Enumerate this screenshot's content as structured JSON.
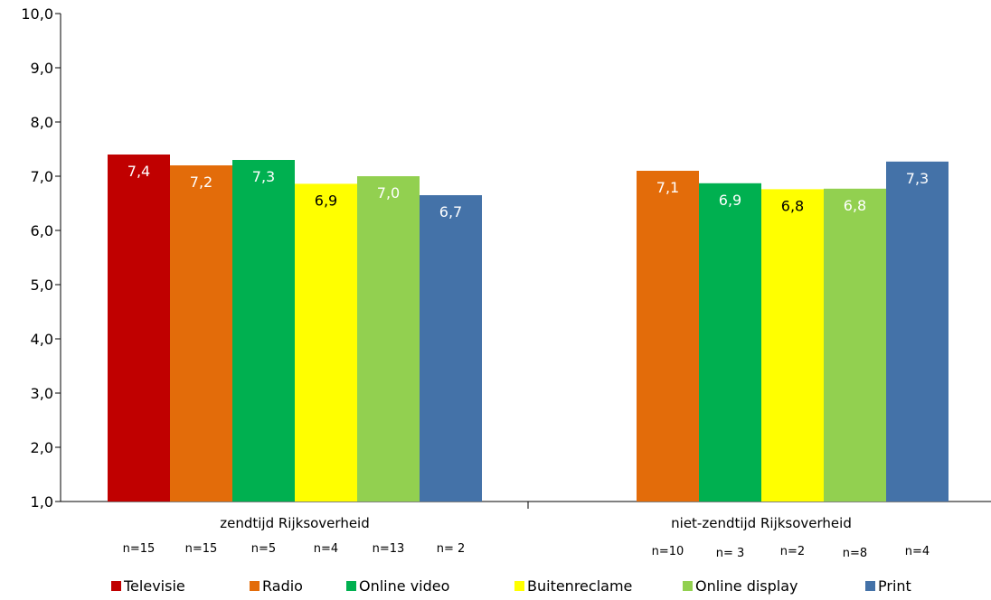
{
  "chart_data": {
    "type": "bar",
    "categories": [
      "zendtijd Rijksoverheid",
      "niet-zendtijd Rijksoverheid"
    ],
    "ylim": [
      1.0,
      10.0
    ],
    "yticks": [
      "1,0",
      "2,0",
      "3,0",
      "4,0",
      "5,0",
      "6,0",
      "7,0",
      "8,0",
      "9,0",
      "10,0"
    ],
    "grid": false,
    "legend_position": "bottom",
    "series": [
      {
        "name": "Televisie",
        "color": "#C00000",
        "label_color": "#ffffff",
        "values": [
          7.4,
          null
        ],
        "labels": [
          "7,4",
          ""
        ],
        "n": [
          "n=15",
          ""
        ]
      },
      {
        "name": "Radio",
        "color": "#E36C0A",
        "label_color": "#ffffff",
        "values": [
          7.2,
          7.1
        ],
        "labels": [
          "7,2",
          "7,1"
        ],
        "n": [
          "n=15",
          "n=10"
        ]
      },
      {
        "name": "Online video",
        "color": "#00B050",
        "label_color": "#ffffff",
        "values": [
          7.3,
          6.87
        ],
        "labels": [
          "7,3",
          "6,9"
        ],
        "n": [
          "n=5",
          "n= 3"
        ]
      },
      {
        "name": "Buitenreclame",
        "color": "#FFFF00",
        "label_color": "#000000",
        "values": [
          6.86,
          6.76
        ],
        "labels": [
          "6,9",
          "6,8"
        ],
        "n": [
          "n=4",
          "n=2"
        ]
      },
      {
        "name": "Online display",
        "color": "#92D050",
        "label_color": "#ffffff",
        "values": [
          7.0,
          6.77
        ],
        "labels": [
          "7,0",
          "6,8"
        ],
        "n": [
          "n=13",
          "n=8"
        ]
      },
      {
        "name": "Print",
        "color": "#4472A8",
        "label_color": "#ffffff",
        "values": [
          6.65,
          7.27
        ],
        "labels": [
          "6,7",
          "7,3"
        ],
        "n": [
          "n= 2",
          "n=4"
        ]
      }
    ]
  }
}
